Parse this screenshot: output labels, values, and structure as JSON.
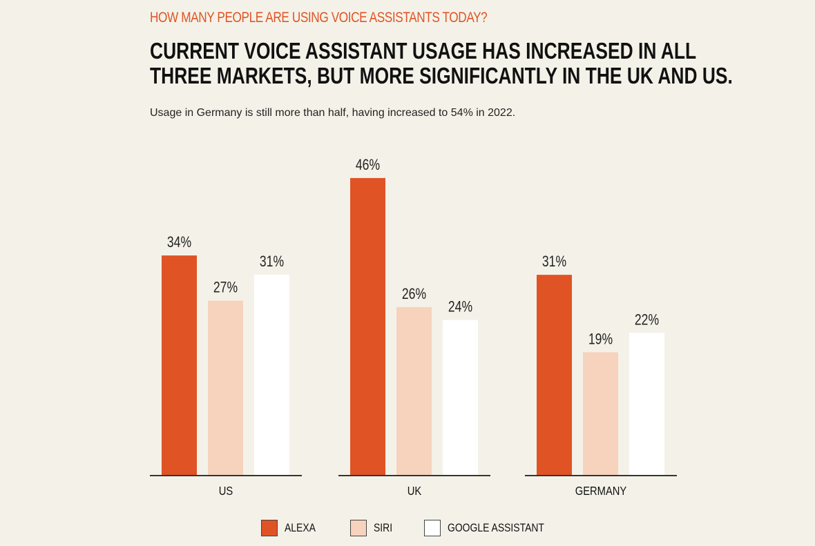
{
  "header": {
    "kicker": "HOW MANY PEOPLE ARE USING VOICE ASSISTANTS TODAY?",
    "headline_line1": "CURRENT VOICE ASSISTANT USAGE HAS INCREASED IN ALL",
    "headline_line2": "THREE MARKETS, BUT MORE SIGNIFICANTLY IN THE UK AND US.",
    "subtitle": "Usage in Germany is still more than half, having increased to 54% in 2022."
  },
  "colors": {
    "accent": "#e05325",
    "siri": "#f7d2bd",
    "google": "#ffffff",
    "background": "#f4f2e8",
    "axis": "#333333"
  },
  "chart_data": {
    "type": "bar",
    "title": "CURRENT VOICE ASSISTANT USAGE HAS INCREASED IN ALL THREE MARKETS, BUT MORE SIGNIFICANTLY IN THE UK AND US.",
    "categories": [
      "US",
      "UK",
      "GERMANY"
    ],
    "series": [
      {
        "name": "ALEXA",
        "values": [
          34,
          46,
          31
        ],
        "labels": [
          "34%",
          "46%",
          "31%"
        ]
      },
      {
        "name": "SIRI",
        "values": [
          27,
          26,
          19
        ],
        "labels": [
          "27%",
          "26%",
          "19%"
        ]
      },
      {
        "name": "GOOGLE ASSISTANT",
        "values": [
          31,
          24,
          22
        ],
        "labels": [
          "31%",
          "24%",
          "22%"
        ]
      }
    ],
    "ylim": [
      0,
      50
    ],
    "xlabel": "",
    "ylabel": "",
    "grid": false,
    "legend_position": "bottom"
  }
}
